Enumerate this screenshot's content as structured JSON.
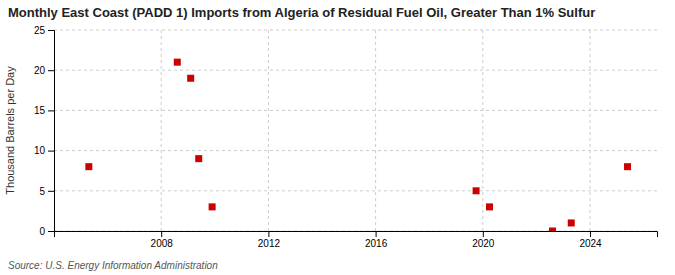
{
  "chart_data": {
    "type": "scatter",
    "title": "Monthly East Coast (PADD 1) Imports from Algeria of Residual Fuel Oil, Greater Than 1% Sulfur",
    "ylabel": "Thousand Barrels per Day",
    "source": "Source: U.S. Energy Information Administration",
    "x": [
      2005.3,
      2008.6,
      2009.1,
      2009.4,
      2009.9,
      2019.75,
      2020.25,
      2022.6,
      2023.3,
      2025.4
    ],
    "values": [
      8,
      21,
      19,
      9,
      3,
      5,
      3,
      0,
      1,
      8
    ],
    "color": "#cc0000",
    "marker": "square",
    "xlim": [
      2004.0,
      2026.5
    ],
    "ylim": [
      0,
      25
    ],
    "xticks": [
      2008,
      2012,
      2016,
      2020,
      2024
    ],
    "yticks": [
      0,
      5,
      10,
      15,
      20,
      25
    ],
    "grid": true
  }
}
